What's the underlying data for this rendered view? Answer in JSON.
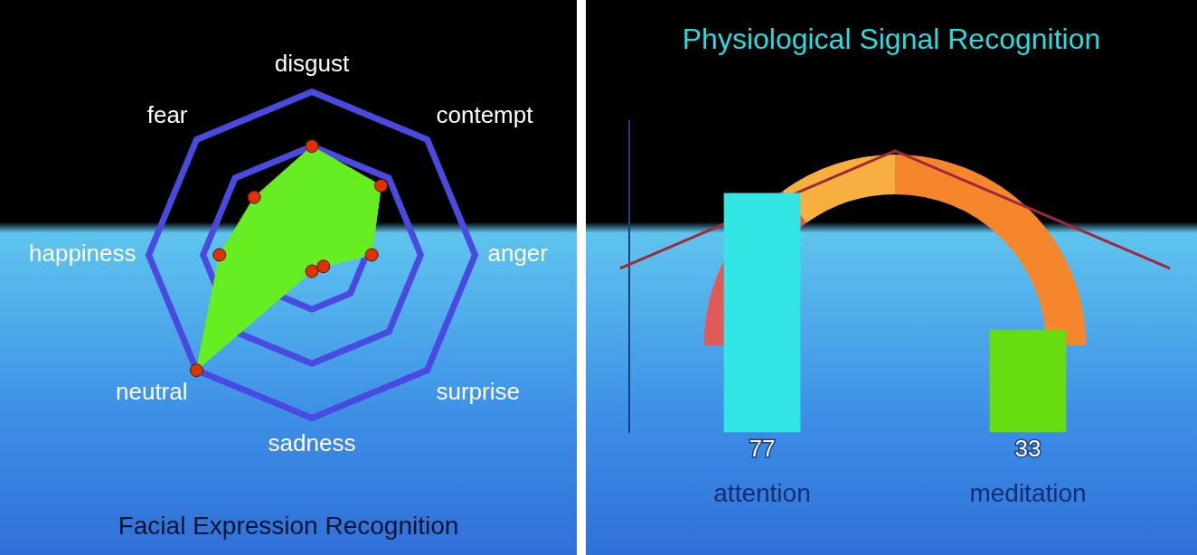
{
  "chart_data": [
    {
      "type": "radar",
      "title": "Facial Expression Recognition",
      "categories": [
        "disgust",
        "contempt",
        "anger",
        "surprise",
        "sadness",
        "neutral",
        "happiness",
        "fear"
      ],
      "values": [
        2,
        1.8,
        1.1,
        0.3,
        0.3,
        3,
        1.7,
        1.5
      ],
      "color": "#66ee22",
      "ylim": [
        0,
        3
      ],
      "yticks": [
        0,
        1,
        2,
        3
      ],
      "tick_labels": false,
      "marker": "circle"
    },
    {
      "type": "bar",
      "title": "Physiological Signal Recognition",
      "categories": [
        "attention",
        "meditation"
      ],
      "values": [
        77,
        33
      ],
      "colors": [
        "#33e6e6",
        "#66dd11"
      ],
      "ylim": [
        0,
        100
      ],
      "data_labels": true,
      "tick_labels": "x"
    }
  ]
}
